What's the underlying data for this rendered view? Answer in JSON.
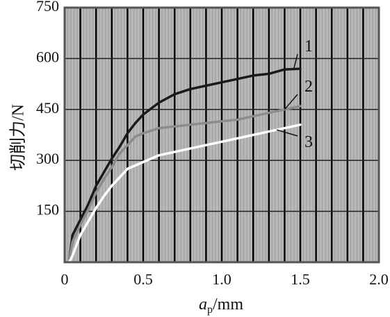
{
  "chart_data": {
    "type": "line",
    "title": "",
    "xlabel": {
      "main": "a",
      "sub": "p",
      "unit": "/mm"
    },
    "ylabel": "切削力/N",
    "xlim": [
      0,
      2.0
    ],
    "ylim": [
      0,
      750
    ],
    "xticks": [
      "0",
      "0.5",
      "1.0",
      "1.5",
      "2.0"
    ],
    "yticks": [
      "150",
      "300",
      "450",
      "600",
      "750"
    ],
    "grid": true,
    "colors": {
      "background": "#b8b8b8",
      "grid_minor": "#9a9a9a",
      "grid_major": "#000000",
      "series_1": "#1a1a1a",
      "series_2": "#8c8c8c",
      "series_3": "#ffffff"
    },
    "series": [
      {
        "name": "1",
        "x": [
          0.05,
          0.1,
          0.15,
          0.2,
          0.25,
          0.3,
          0.35,
          0.4,
          0.45,
          0.5,
          0.6,
          0.7,
          0.8,
          0.9,
          1.0,
          1.1,
          1.2,
          1.3,
          1.4,
          1.5
        ],
        "y": [
          80,
          125,
          170,
          225,
          265,
          305,
          340,
          380,
          410,
          435,
          470,
          495,
          510,
          520,
          530,
          540,
          550,
          555,
          568,
          570
        ]
      },
      {
        "name": "2",
        "x": [
          0.05,
          0.1,
          0.15,
          0.2,
          0.25,
          0.3,
          0.35,
          0.4,
          0.45,
          0.5,
          0.6,
          0.7,
          0.8,
          0.9,
          1.0,
          1.1,
          1.2,
          1.3,
          1.4,
          1.5
        ],
        "y": [
          60,
          110,
          155,
          205,
          245,
          280,
          320,
          345,
          370,
          380,
          395,
          400,
          405,
          410,
          415,
          420,
          430,
          440,
          450,
          460
        ]
      },
      {
        "name": "3",
        "x": [
          0.05,
          0.1,
          0.15,
          0.2,
          0.25,
          0.3,
          0.35,
          0.4,
          0.45,
          0.5,
          0.6,
          0.7,
          0.8,
          0.9,
          1.0,
          1.1,
          1.2,
          1.3,
          1.4,
          1.5
        ],
        "y": [
          20,
          80,
          120,
          160,
          195,
          225,
          250,
          275,
          285,
          295,
          315,
          325,
          335,
          345,
          355,
          365,
          375,
          385,
          395,
          405
        ]
      }
    ]
  }
}
